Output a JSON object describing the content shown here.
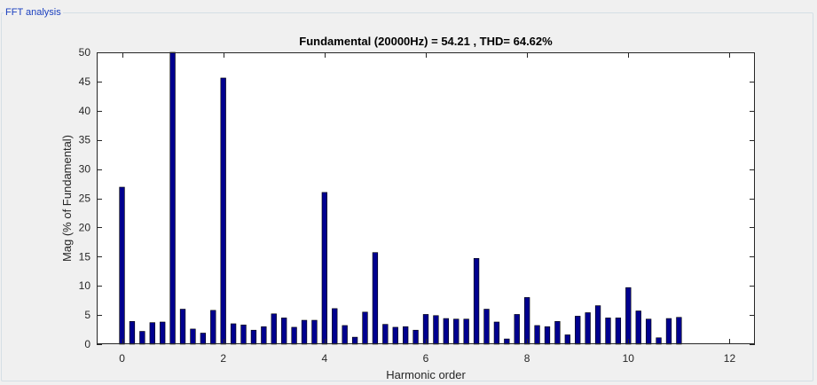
{
  "panel": {
    "title": "FFT analysis"
  },
  "colors": {
    "bar": "#00008f",
    "axes_bg": "#ffffff",
    "axis": "#262626"
  },
  "chart_data": {
    "type": "bar",
    "title": "Fundamental (20000Hz) = 54.21 , THD= 64.62%",
    "xlabel": "Harmonic order",
    "ylabel": "Mag (% of Fundamental)",
    "xlim": [
      -0.5,
      12.5
    ],
    "ylim": [
      0,
      50
    ],
    "xticks": [
      0,
      2,
      4,
      6,
      8,
      10,
      12
    ],
    "yticks": [
      0,
      5,
      10,
      15,
      20,
      25,
      30,
      35,
      40,
      45,
      50
    ],
    "grid": false,
    "bar_width": 0.1,
    "x": [
      0,
      0.2,
      0.4,
      0.6,
      0.8,
      1.0,
      1.2,
      1.4,
      1.6,
      1.8,
      2.0,
      2.2,
      2.4,
      2.6,
      2.8,
      3.0,
      3.2,
      3.4,
      3.6,
      3.8,
      4.0,
      4.2,
      4.4,
      4.6,
      4.8,
      5.0,
      5.2,
      5.4,
      5.6,
      5.8,
      6.0,
      6.2,
      6.4,
      6.6,
      6.8,
      7.0,
      7.2,
      7.4,
      7.6,
      7.8,
      8.0,
      8.2,
      8.4,
      8.6,
      8.8,
      9.0,
      9.2,
      9.4,
      9.6,
      9.8,
      10.0,
      10.2,
      10.4,
      10.6,
      10.8,
      11.0
    ],
    "values": [
      26.9,
      3.9,
      2.2,
      3.7,
      3.8,
      50,
      6.0,
      2.6,
      1.9,
      5.8,
      45.6,
      3.5,
      3.3,
      2.4,
      3.0,
      5.2,
      4.5,
      2.9,
      4.1,
      4.1,
      26.0,
      6.1,
      3.2,
      1.2,
      5.5,
      15.7,
      3.4,
      2.9,
      3.0,
      2.4,
      5.1,
      4.9,
      4.4,
      4.3,
      4.3,
      14.7,
      6.0,
      3.8,
      0.9,
      5.1,
      8.0,
      3.2,
      3.0,
      3.9,
      1.6,
      4.8,
      5.4,
      6.6,
      4.5,
      4.5,
      9.7,
      5.7,
      4.3,
      1.1,
      4.4,
      4.6
    ]
  }
}
